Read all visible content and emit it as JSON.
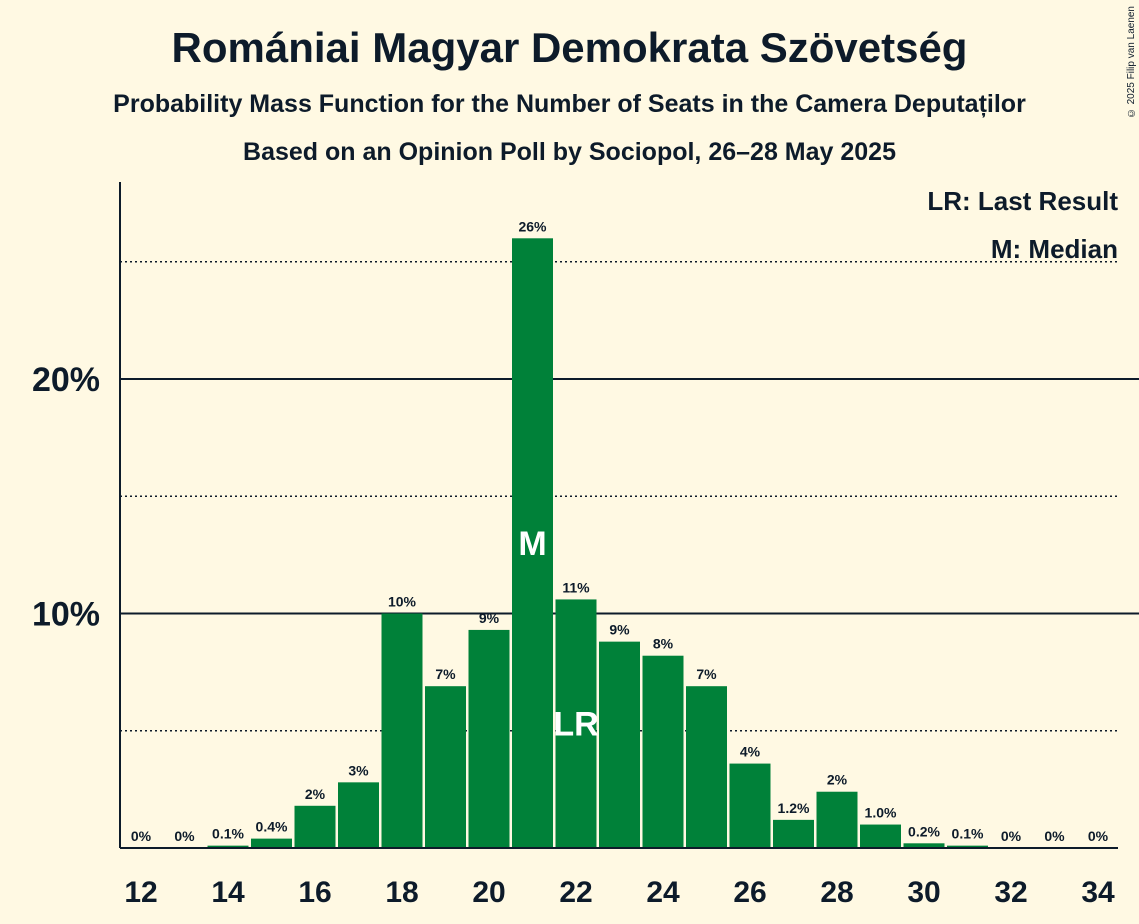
{
  "title": "Romániai Magyar Demokrata Szövetség",
  "subtitle": "Probability Mass Function for the Number of Seats in the Camera Deputaților",
  "subtitle2": "Based on an Opinion Poll by Sociopol, 26–28 May 2025",
  "copyright": "© 2025 Filip van Laenen",
  "chart_data": {
    "type": "bar",
    "x": [
      12,
      13,
      14,
      15,
      16,
      17,
      18,
      19,
      20,
      21,
      22,
      23,
      24,
      25,
      26,
      27,
      28,
      29,
      30,
      31,
      32,
      33,
      34
    ],
    "values": [
      0,
      0,
      0.1,
      0.4,
      1.8,
      2.8,
      10.0,
      6.9,
      9.3,
      26.0,
      10.6,
      8.8,
      8.2,
      6.9,
      3.6,
      1.2,
      2.4,
      1.0,
      0.2,
      0.1,
      0,
      0,
      0
    ],
    "value_labels": [
      "0%",
      "0%",
      "0.1%",
      "0.4%",
      "2%",
      "3%",
      "10%",
      "7%",
      "9%",
      "26%",
      "11%",
      "9%",
      "8%",
      "7%",
      "4%",
      "1.2%",
      "2%",
      "1.0%",
      "0.2%",
      "0.1%",
      "0%",
      "0%",
      "0%"
    ],
    "x_tick_labels": [
      "12",
      "14",
      "16",
      "18",
      "20",
      "22",
      "24",
      "26",
      "28",
      "30",
      "32",
      "34"
    ],
    "x_ticks": [
      12,
      14,
      16,
      18,
      20,
      22,
      24,
      26,
      28,
      30,
      32,
      34
    ],
    "y_ticks": [
      {
        "value": 10,
        "label": "10%"
      },
      {
        "value": 20,
        "label": "20%"
      }
    ],
    "y_minor_gridlines": [
      5,
      15,
      25
    ],
    "ylim": [
      0,
      28
    ],
    "median_seat": 21,
    "median_marker": "M",
    "last_result_seat": 22,
    "last_result_marker": "LR",
    "legend": [
      "LR: Last Result",
      "M: Median"
    ],
    "legend_position": "top-right",
    "bar_color": "#008139",
    "background_color": "#fff9e3"
  }
}
